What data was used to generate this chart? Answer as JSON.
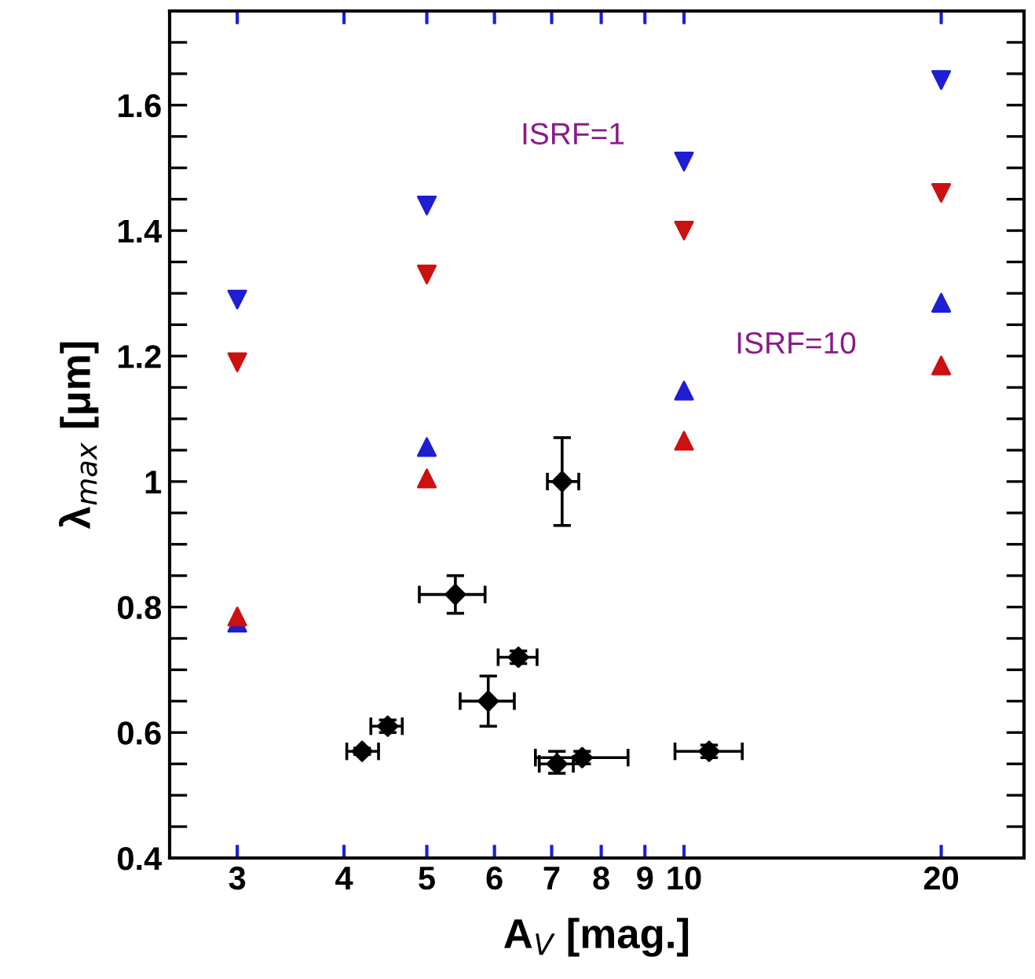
{
  "chart_data": {
    "type": "scatter",
    "xlabel": "A$_{V}$ [mag.]",
    "ylabel": "λ$_{max}$ [μm]",
    "log": "x",
    "xlim": [
      2.5,
      25
    ],
    "ylim": [
      0.4,
      1.75
    ],
    "xticks": [
      3,
      4,
      5,
      6,
      7,
      8,
      9,
      10,
      20
    ],
    "yticks": [
      {
        "value": 0.4,
        "label": "0.4"
      },
      {
        "value": 0.45,
        "label": null
      },
      {
        "value": 0.5,
        "label": null
      },
      {
        "value": 0.55,
        "label": null
      },
      {
        "value": 0.6,
        "label": "0.6"
      },
      {
        "value": 0.65,
        "label": null
      },
      {
        "value": 0.7,
        "label": null
      },
      {
        "value": 0.75,
        "label": null
      },
      {
        "value": 0.8,
        "label": "0.8"
      },
      {
        "value": 0.85,
        "label": null
      },
      {
        "value": 0.9,
        "label": null
      },
      {
        "value": 0.95,
        "label": null
      },
      {
        "value": 1,
        "label": "1"
      },
      {
        "value": 1.05,
        "label": null
      },
      {
        "value": 1.1,
        "label": null
      },
      {
        "value": 1.15,
        "label": null
      },
      {
        "value": 1.2,
        "label": "1.2"
      },
      {
        "value": 1.25,
        "label": null
      },
      {
        "value": 1.3,
        "label": null
      },
      {
        "value": 1.35,
        "label": null
      },
      {
        "value": 1.4,
        "label": "1.4"
      },
      {
        "value": 1.45,
        "label": null
      },
      {
        "value": 1.5,
        "label": null
      },
      {
        "value": 1.55,
        "label": null
      },
      {
        "value": 1.6,
        "label": "1.6"
      },
      {
        "value": 1.65,
        "label": null
      },
      {
        "value": 1.7,
        "label": null
      }
    ],
    "grid": false,
    "annotations": [
      "ISRF=1",
      "ISRF=10"
    ],
    "series": [
      {
        "color": "#1e1ed2",
        "marker": "triangle_down",
        "x": [
          3,
          5,
          10,
          20
        ],
        "values": [
          1.29,
          1.44,
          1.51,
          1.64
        ]
      },
      {
        "color": "#cc1111",
        "marker": "triangle_down",
        "x": [
          3,
          5,
          10,
          20
        ],
        "values": [
          1.19,
          1.33,
          1.4,
          1.46
        ]
      },
      {
        "color": "#1e1ed2",
        "marker": "triangle",
        "x": [
          3,
          5,
          10,
          20
        ],
        "values": [
          0.775,
          1.055,
          1.145,
          1.285
        ]
      },
      {
        "color": "#cc1111",
        "marker": "triangle",
        "x": [
          3,
          5,
          10,
          20
        ],
        "values": [
          0.785,
          1.005,
          1.065,
          1.185
        ]
      },
      {
        "color": "#000000",
        "marker": "diamond",
        "x": [
          4.2,
          4.5,
          5.4,
          5.9,
          6.4,
          7.2,
          7.1,
          7.6,
          10.7
        ],
        "values": [
          0.57,
          0.61,
          0.82,
          0.65,
          0.72,
          1.0,
          0.55,
          0.56,
          0.57
        ],
        "errors": [
          0.005,
          0.01,
          0.03,
          0.04,
          0.01,
          0.07,
          [
            0.535,
            0.57
          ],
          0.01,
          0.01
        ],
        "xerrors": [
          [
            4.03,
            4.39
          ],
          [
            4.3,
            4.68
          ],
          [
            4.9,
            5.85
          ],
          [
            5.47,
            6.33
          ],
          [
            6.06,
            6.73
          ],
          [
            6.92,
            7.53
          ],
          [
            6.77,
            7.42
          ],
          [
            6.7,
            8.6
          ],
          [
            9.76,
            11.7
          ]
        ]
      }
    ]
  }
}
